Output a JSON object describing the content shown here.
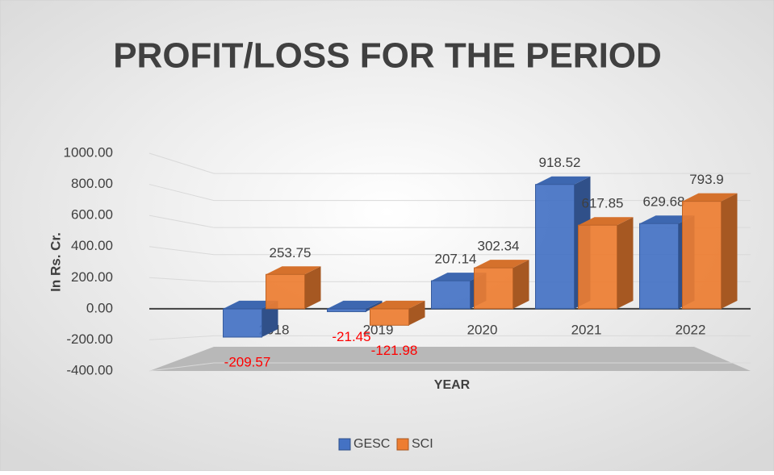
{
  "chart_data": {
    "type": "bar3d",
    "title": "PROFIT/LOSS FOR THE PERIOD",
    "y_label": "In Rs. Cr.",
    "x_label": "YEAR",
    "categories": [
      "2018",
      "2019",
      "2020",
      "2021",
      "2022"
    ],
    "series": [
      {
        "name": "GESC",
        "color": "#4472c4",
        "values": [
          -209.57,
          -21.45,
          207.14,
          918.52,
          629.68
        ]
      },
      {
        "name": "SCI",
        "color": "#ed7d31",
        "values": [
          253.75,
          -121.98,
          302.34,
          617.85,
          793.9
        ]
      }
    ],
    "ylim": [
      -400,
      1000
    ],
    "yticks": [
      {
        "value": -400,
        "label": "-400.00"
      },
      {
        "value": -200,
        "label": "-200.00"
      },
      {
        "value": 0,
        "label": "0.00"
      },
      {
        "value": 200,
        "label": "200.00"
      },
      {
        "value": 400,
        "label": "400.00"
      },
      {
        "value": 600,
        "label": "600.00"
      },
      {
        "value": 800,
        "label": "800.00"
      },
      {
        "value": 1000,
        "label": "1000.00"
      }
    ],
    "negative_label_color": "#ff0000",
    "grid": true,
    "legend": "bottom"
  }
}
